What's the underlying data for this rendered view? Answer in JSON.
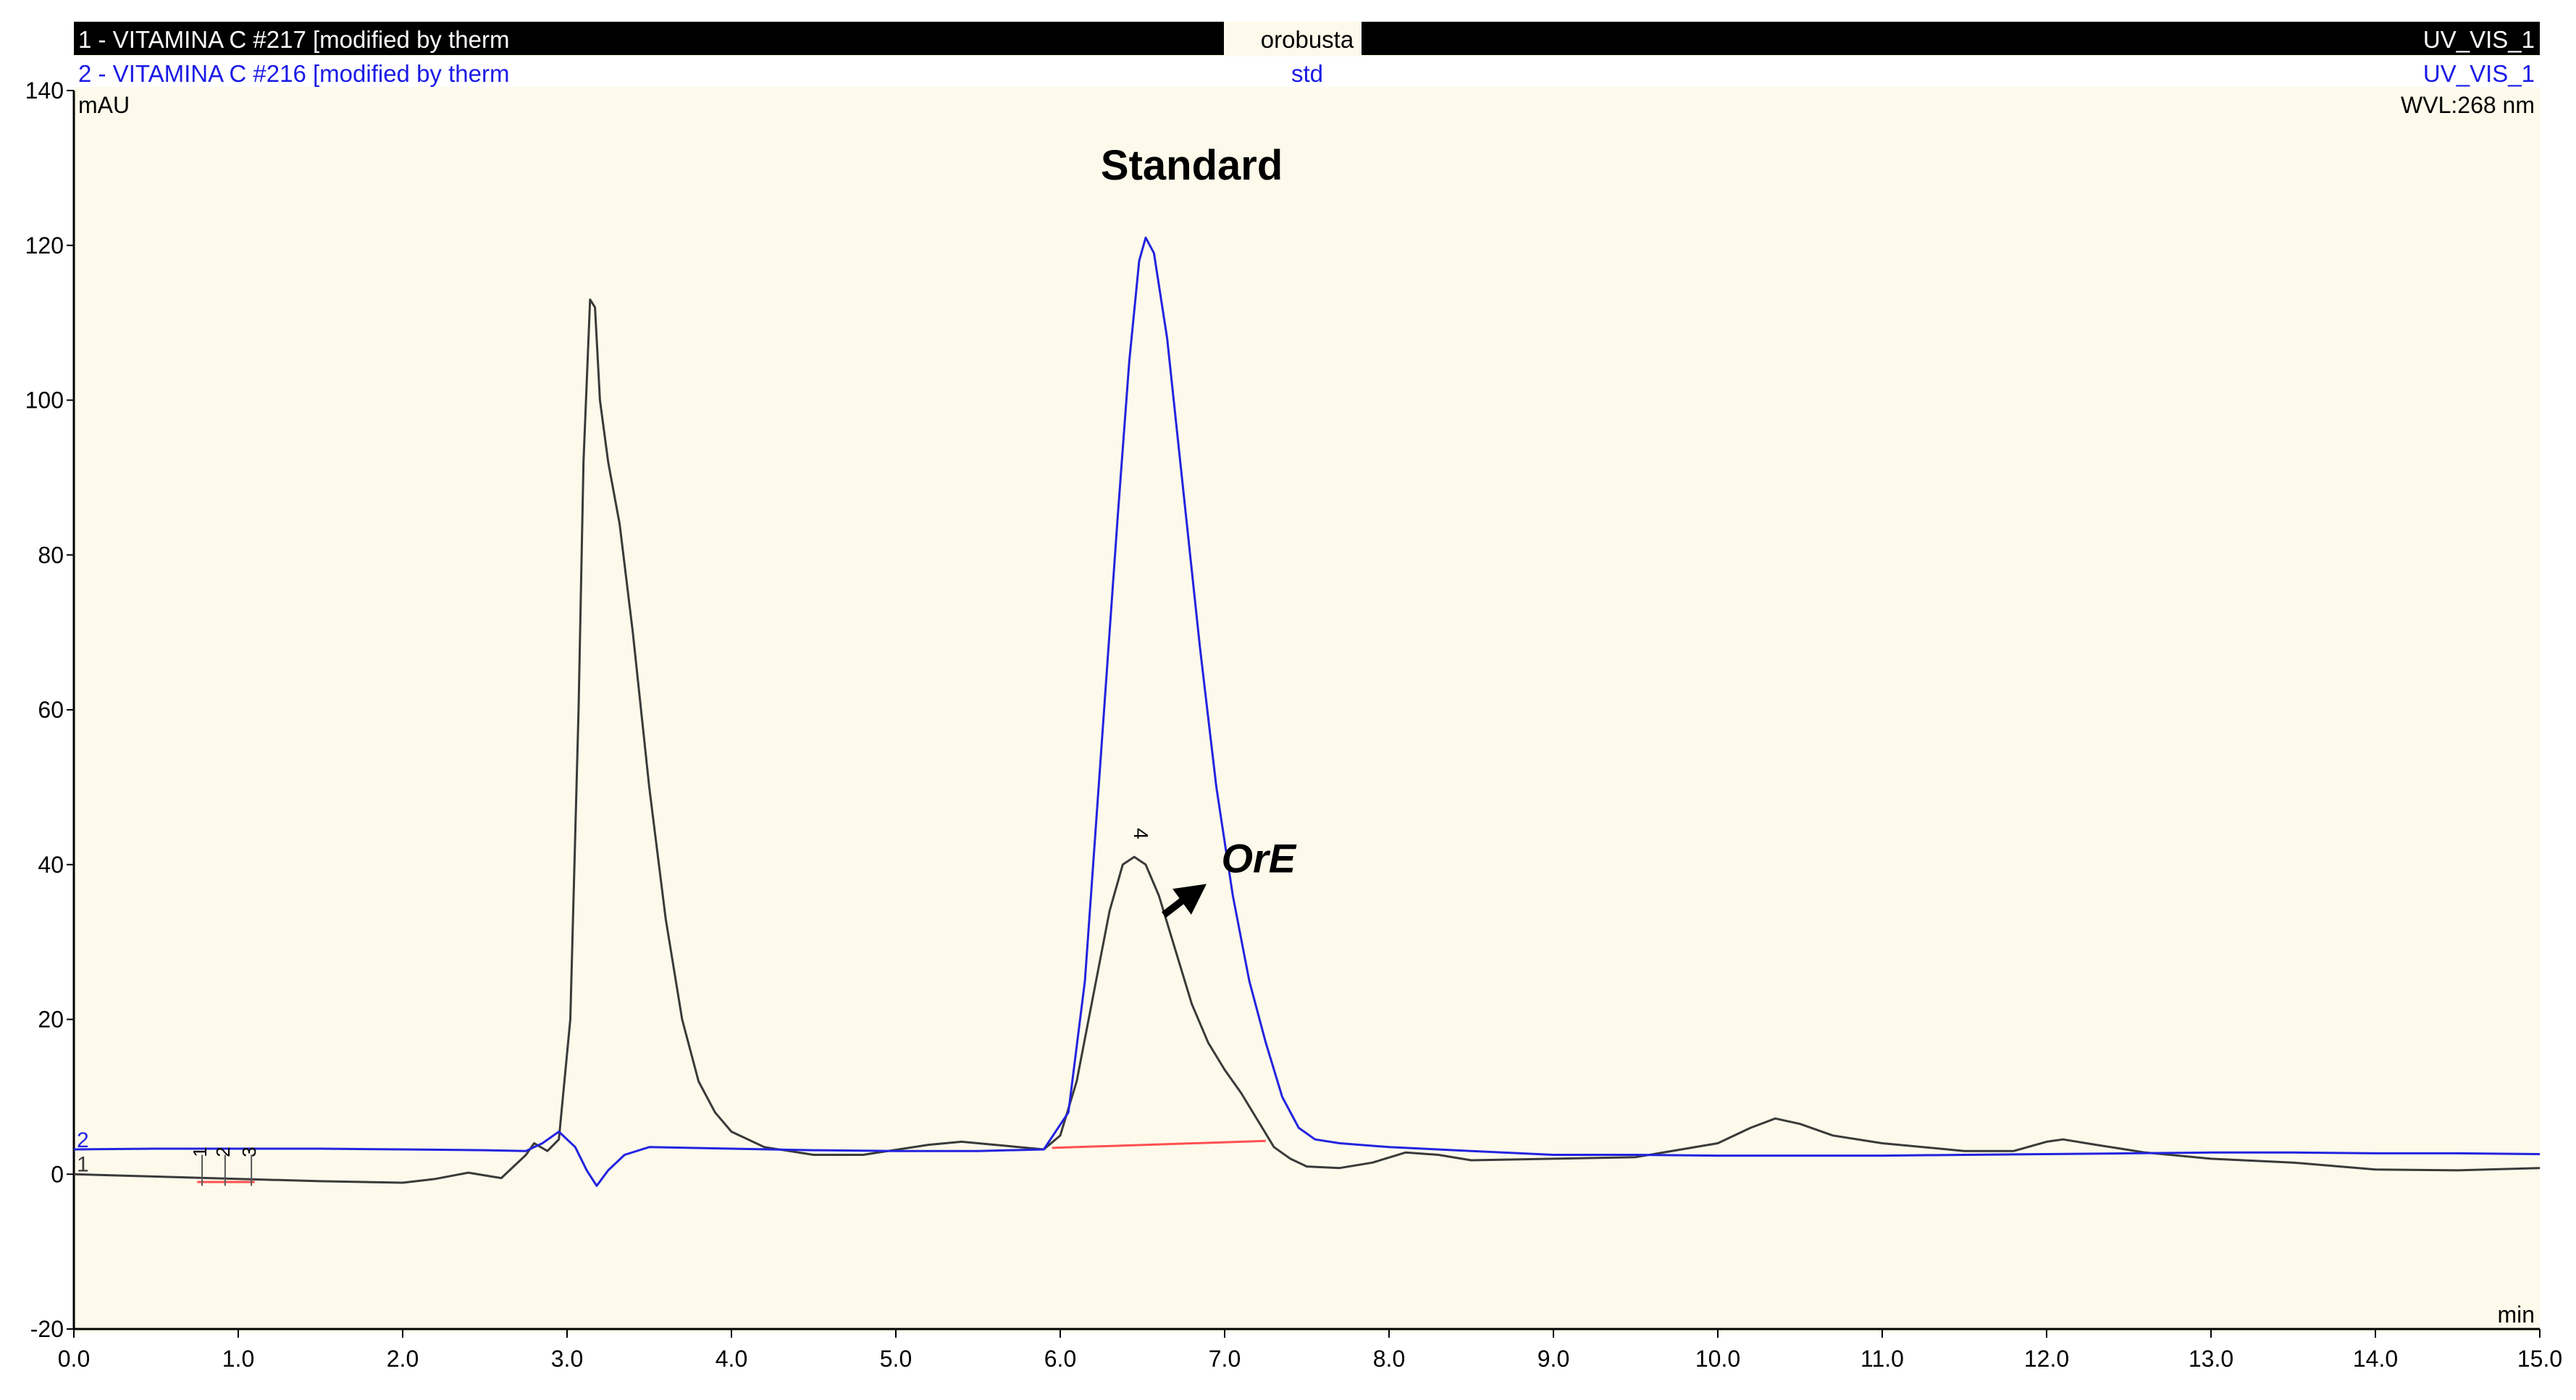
{
  "header": {
    "trace1": {
      "left": "1 - VITAMINA C #217 [modified by therm",
      "center": "orobusta",
      "right": "UV_VIS_1"
    },
    "trace2": {
      "left": "2 - VITAMINA C #216 [modified by therm",
      "center": "std",
      "right": "UV_VIS_1"
    }
  },
  "axis": {
    "y_unit": "mAU",
    "x_unit": "min",
    "wavelength": "WVL:268 nm"
  },
  "annotations": {
    "standard": "Standard",
    "ore": "OrE",
    "peak4": "4",
    "peak_labels": [
      "1",
      "2",
      "3"
    ],
    "trace_label_1": "1",
    "trace_label_2": "2"
  },
  "colors": {
    "background": "#fdfaeb",
    "trace1": "#3a3a3a",
    "trace2": "#2323e0",
    "baseline": "#ff5050",
    "header_bar": "#000000",
    "header_text2": "#1a1ae6"
  },
  "chart_data": {
    "type": "line",
    "title": "",
    "xlabel": "min",
    "ylabel": "mAU",
    "xlim": [
      0,
      15
    ],
    "ylim": [
      -20,
      140
    ],
    "x_ticks": [
      "0.0",
      "1.0",
      "2.0",
      "3.0",
      "4.0",
      "5.0",
      "6.0",
      "7.0",
      "8.0",
      "9.0",
      "10.0",
      "11.0",
      "12.0",
      "13.0",
      "14.0",
      "15.0"
    ],
    "y_ticks": [
      "-20",
      "0",
      "20",
      "40",
      "60",
      "80",
      "100",
      "120",
      "140"
    ],
    "grid": false,
    "series": [
      {
        "name": "1 - VITAMINA C #217 [modified by therm",
        "color": "#3a3a3a",
        "points": [
          [
            0.0,
            0.0
          ],
          [
            0.5,
            -0.3
          ],
          [
            1.0,
            -0.6
          ],
          [
            1.5,
            -0.9
          ],
          [
            2.0,
            -1.1
          ],
          [
            2.2,
            -0.6
          ],
          [
            2.4,
            0.2
          ],
          [
            2.6,
            -0.5
          ],
          [
            2.75,
            2.5
          ],
          [
            2.8,
            4.0
          ],
          [
            2.88,
            3.0
          ],
          [
            2.95,
            4.5
          ],
          [
            3.02,
            20
          ],
          [
            3.07,
            60
          ],
          [
            3.1,
            92
          ],
          [
            3.14,
            113
          ],
          [
            3.17,
            112
          ],
          [
            3.2,
            100
          ],
          [
            3.25,
            92
          ],
          [
            3.32,
            84
          ],
          [
            3.4,
            70
          ],
          [
            3.5,
            50
          ],
          [
            3.6,
            33
          ],
          [
            3.7,
            20
          ],
          [
            3.8,
            12
          ],
          [
            3.9,
            8
          ],
          [
            4.0,
            5.5
          ],
          [
            4.2,
            3.5
          ],
          [
            4.5,
            2.5
          ],
          [
            4.8,
            2.5
          ],
          [
            5.2,
            3.8
          ],
          [
            5.4,
            4.2
          ],
          [
            5.6,
            3.8
          ],
          [
            5.9,
            3.2
          ],
          [
            6.0,
            5
          ],
          [
            6.1,
            12
          ],
          [
            6.2,
            23
          ],
          [
            6.3,
            34
          ],
          [
            6.38,
            40
          ],
          [
            6.45,
            41
          ],
          [
            6.52,
            40
          ],
          [
            6.6,
            36
          ],
          [
            6.7,
            29
          ],
          [
            6.8,
            22
          ],
          [
            6.9,
            17
          ],
          [
            7.0,
            13.5
          ],
          [
            7.1,
            10.5
          ],
          [
            7.2,
            7
          ],
          [
            7.3,
            3.5
          ],
          [
            7.4,
            2
          ],
          [
            7.5,
            1
          ],
          [
            7.7,
            0.8
          ],
          [
            7.9,
            1.5
          ],
          [
            8.1,
            2.8
          ],
          [
            8.3,
            2.5
          ],
          [
            8.5,
            1.8
          ],
          [
            9.0,
            2.0
          ],
          [
            9.5,
            2.2
          ],
          [
            10.0,
            4
          ],
          [
            10.2,
            6
          ],
          [
            10.35,
            7.2
          ],
          [
            10.5,
            6.5
          ],
          [
            10.7,
            5
          ],
          [
            11.0,
            4
          ],
          [
            11.5,
            3
          ],
          [
            11.8,
            3
          ],
          [
            12.0,
            4.2
          ],
          [
            12.1,
            4.5
          ],
          [
            12.3,
            3.8
          ],
          [
            12.6,
            2.8
          ],
          [
            13.0,
            2
          ],
          [
            13.5,
            1.5
          ],
          [
            14.0,
            0.6
          ],
          [
            14.5,
            0.5
          ],
          [
            15.0,
            0.8
          ]
        ]
      },
      {
        "name": "2 - VITAMINA C #216 [modified by therm",
        "color": "#2323e0",
        "points": [
          [
            0.0,
            3.2
          ],
          [
            0.5,
            3.3
          ],
          [
            1.0,
            3.3
          ],
          [
            1.5,
            3.3
          ],
          [
            2.0,
            3.2
          ],
          [
            2.5,
            3.1
          ],
          [
            2.75,
            3.0
          ],
          [
            2.85,
            4.0
          ],
          [
            2.95,
            5.5
          ],
          [
            3.05,
            3.5
          ],
          [
            3.12,
            0.5
          ],
          [
            3.18,
            -1.5
          ],
          [
            3.25,
            0.5
          ],
          [
            3.35,
            2.5
          ],
          [
            3.5,
            3.5
          ],
          [
            4.0,
            3.3
          ],
          [
            4.5,
            3.1
          ],
          [
            5.0,
            3.0
          ],
          [
            5.5,
            3.0
          ],
          [
            5.9,
            3.2
          ],
          [
            6.05,
            8
          ],
          [
            6.15,
            25
          ],
          [
            6.25,
            55
          ],
          [
            6.35,
            85
          ],
          [
            6.42,
            105
          ],
          [
            6.48,
            118
          ],
          [
            6.52,
            121
          ],
          [
            6.57,
            119
          ],
          [
            6.65,
            108
          ],
          [
            6.75,
            88
          ],
          [
            6.85,
            68
          ],
          [
            6.95,
            50
          ],
          [
            7.05,
            36
          ],
          [
            7.15,
            25
          ],
          [
            7.25,
            17
          ],
          [
            7.35,
            10
          ],
          [
            7.45,
            6
          ],
          [
            7.55,
            4.5
          ],
          [
            7.7,
            4.0
          ],
          [
            8.0,
            3.5
          ],
          [
            8.5,
            3.0
          ],
          [
            9.0,
            2.5
          ],
          [
            9.5,
            2.5
          ],
          [
            10.0,
            2.4
          ],
          [
            10.5,
            2.4
          ],
          [
            11.0,
            2.4
          ],
          [
            11.5,
            2.5
          ],
          [
            12.0,
            2.6
          ],
          [
            12.5,
            2.7
          ],
          [
            13.0,
            2.8
          ],
          [
            13.5,
            2.8
          ],
          [
            14.0,
            2.7
          ],
          [
            14.5,
            2.7
          ],
          [
            15.0,
            2.6
          ]
        ]
      }
    ],
    "baseline_segments": [
      {
        "x": [
          5.95,
          7.25
        ],
        "y": [
          3.4,
          4.3
        ]
      },
      {
        "x": [
          0.75,
          1.1
        ],
        "y": [
          -1.0,
          -1.0
        ]
      }
    ],
    "peak_markers_x": [
      0.78,
      0.92,
      1.08
    ],
    "peak4_x": 6.45
  }
}
